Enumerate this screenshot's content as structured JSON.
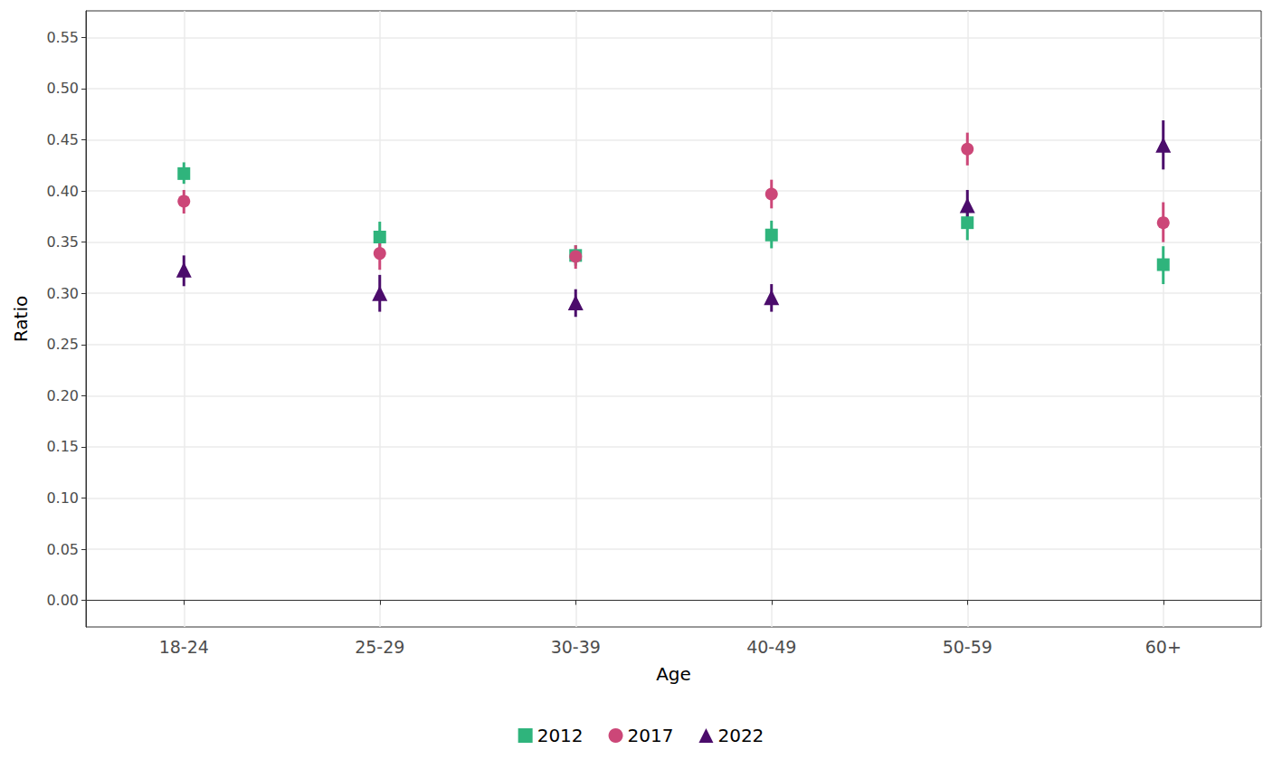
{
  "chart_data": {
    "type": "scatter",
    "x_label": "Age",
    "y_label": "Ratio",
    "categories": [
      "18-24",
      "25-29",
      "30-39",
      "40-49",
      "50-59",
      "60+"
    ],
    "series": [
      {
        "name": "2012",
        "color": "#2fb47c",
        "marker": "square",
        "values": [
          0.417,
          0.355,
          0.337,
          0.357,
          0.369,
          0.328
        ],
        "lower": [
          0.407,
          0.341,
          0.327,
          0.344,
          0.352,
          0.309
        ],
        "upper": [
          0.428,
          0.37,
          0.347,
          0.371,
          0.384,
          0.346
        ]
      },
      {
        "name": "2017",
        "color": "#cc4778",
        "marker": "circle",
        "values": [
          0.39,
          0.339,
          0.336,
          0.397,
          0.441,
          0.369
        ],
        "lower": [
          0.378,
          0.323,
          0.324,
          0.383,
          0.425,
          0.35
        ],
        "upper": [
          0.401,
          0.354,
          0.347,
          0.411,
          0.457,
          0.389
        ]
      },
      {
        "name": "2022",
        "color": "#4b0c6b",
        "marker": "triangle",
        "values": [
          0.323,
          0.3,
          0.291,
          0.296,
          0.386,
          0.445
        ],
        "lower": [
          0.307,
          0.282,
          0.277,
          0.282,
          0.37,
          0.421
        ],
        "upper": [
          0.337,
          0.318,
          0.304,
          0.309,
          0.401,
          0.469
        ]
      }
    ],
    "ylim": [
      -0.026,
      0.576
    ],
    "yticks": [
      {
        "value": 0,
        "label": "0.00"
      },
      {
        "value": 0.05,
        "label": "0.05"
      },
      {
        "value": 0.1,
        "label": "0.10"
      },
      {
        "value": 0.15,
        "label": "0.15"
      },
      {
        "value": 0.2,
        "label": "0.20"
      },
      {
        "value": 0.25,
        "label": "0.25"
      },
      {
        "value": 0.3,
        "label": "0.30"
      },
      {
        "value": 0.35,
        "label": "0.35"
      },
      {
        "value": 0.4,
        "label": "0.40"
      },
      {
        "value": 0.45,
        "label": "0.45"
      },
      {
        "value": 0.5,
        "label": "0.50"
      },
      {
        "value": 0.55,
        "label": "0.55"
      }
    ],
    "grid": true,
    "legend": "bottom"
  }
}
